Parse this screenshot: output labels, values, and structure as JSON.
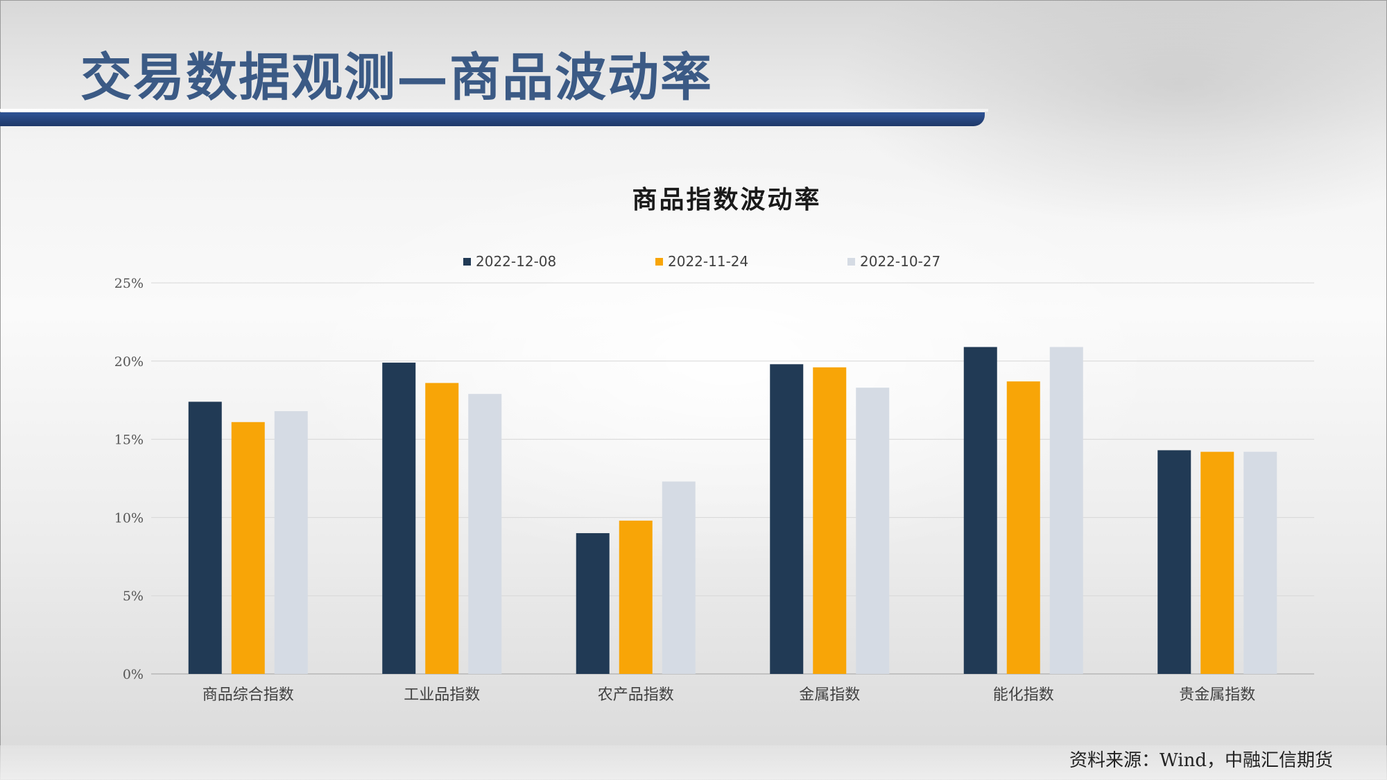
{
  "slide": {
    "title": "交易数据观测—商品波动率",
    "source": "资料来源：Wind，中融汇信期货"
  },
  "chart_data": {
    "type": "bar",
    "title": "商品指数波动率",
    "categories": [
      "商品综合指数",
      "工业品指数",
      "农产品指数",
      "金属指数",
      "能化指数",
      "贵金属指数"
    ],
    "series": [
      {
        "name": "2022-12-08",
        "color": "#213a55",
        "values": [
          17.4,
          19.9,
          9.0,
          19.8,
          20.9,
          14.3
        ]
      },
      {
        "name": "2022-11-24",
        "color": "#f8a507",
        "values": [
          16.1,
          18.6,
          9.8,
          19.6,
          18.7,
          14.2
        ]
      },
      {
        "name": "2022-10-27",
        "color": "#d5dbe4",
        "values": [
          16.8,
          17.9,
          12.3,
          18.3,
          20.9,
          14.2
        ]
      }
    ],
    "ylim": [
      0,
      25
    ],
    "yticks": [
      0,
      5,
      10,
      15,
      20,
      25
    ],
    "ytick_format": "%",
    "grid": true,
    "legend": "top-center"
  }
}
